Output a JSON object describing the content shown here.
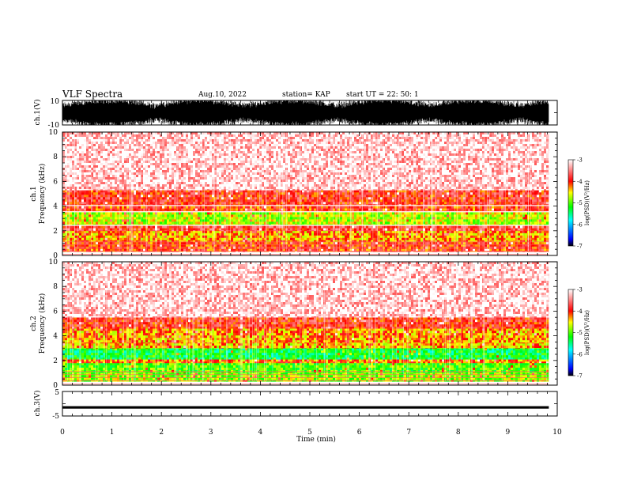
{
  "header": {
    "title": "VLF Spectra",
    "date": "Aug.10, 2022",
    "station": "station= KAP",
    "start": "start  UT  =   22: 50: 1"
  },
  "chart_data": [
    {
      "type": "line",
      "panel": "ch1-waveform",
      "ylabel": "ch.1(V)",
      "ylim": [
        -10,
        10
      ],
      "y_ticklabels": [
        "10",
        "-10"
      ],
      "xlim": [
        0,
        10
      ],
      "x_data_extent": [
        0,
        9.83
      ],
      "description_values": {
        "amplitude_range": [
          -10,
          10
        ]
      }
    },
    {
      "type": "heatmap",
      "panel": "ch1-spectrogram",
      "ylabel": "ch.1\nFrequency (kHz)",
      "ylim": [
        0,
        10
      ],
      "y_ticks": [
        0,
        2,
        4,
        6,
        8,
        10
      ],
      "xlim": [
        0,
        10
      ],
      "x_data_extent": [
        0,
        9.83
      ],
      "bands": [
        {
          "f_min": 0.3,
          "f_max": 1.1,
          "level": -4.0
        },
        {
          "f_min": 1.1,
          "f_max": 2.0,
          "level": -4.3
        },
        {
          "f_min": 2.0,
          "f_max": 2.4,
          "level": -3.8
        },
        {
          "f_min": 2.5,
          "f_max": 3.5,
          "level": -4.7
        },
        {
          "f_min": 3.6,
          "f_max": 4.0,
          "level": -4.0
        },
        {
          "f_min": 4.1,
          "f_max": 5.3,
          "level": -3.9
        },
        {
          "f_min": 5.3,
          "f_max": 10.0,
          "level": -3.2
        }
      ],
      "colorbar": {
        "label": "log(PSD)(V²/Hz)",
        "range": [
          -7,
          -3
        ],
        "ticks": [
          "-3",
          "-4",
          "-5",
          "-6",
          "-7"
        ],
        "colors": [
          "#ffffff",
          "#ff0000",
          "#ffff00",
          "#00ff00",
          "#00ffff",
          "#0000ff",
          "#000000"
        ]
      }
    },
    {
      "type": "heatmap",
      "panel": "ch2-spectrogram",
      "ylabel": "ch.2\nFrequency (kHz)",
      "ylim": [
        0,
        10
      ],
      "y_ticks": [
        0,
        2,
        4,
        6,
        8,
        10
      ],
      "xlim": [
        0,
        10
      ],
      "x_data_extent": [
        0,
        9.83
      ],
      "bands": [
        {
          "f_min": 0.3,
          "f_max": 1.0,
          "level": -4.8
        },
        {
          "f_min": 1.0,
          "f_max": 1.8,
          "level": -5.0
        },
        {
          "f_min": 1.8,
          "f_max": 2.1,
          "level": -4.2
        },
        {
          "f_min": 2.1,
          "f_max": 3.0,
          "level": -5.3
        },
        {
          "f_min": 3.0,
          "f_max": 3.4,
          "level": -4.4
        },
        {
          "f_min": 3.4,
          "f_max": 4.6,
          "level": -4.3
        },
        {
          "f_min": 4.6,
          "f_max": 5.5,
          "level": -3.9
        },
        {
          "f_min": 5.5,
          "f_max": 10.0,
          "level": -3.2
        }
      ],
      "colorbar": {
        "label": "log(PSD)(V²/Hz)",
        "range": [
          -7,
          -3
        ],
        "ticks": [
          "-3",
          "-4",
          "-5",
          "-6",
          "-7"
        ],
        "colors": [
          "#ffffff",
          "#ff0000",
          "#ffff00",
          "#00ff00",
          "#00ffff",
          "#0000ff",
          "#000000"
        ]
      }
    },
    {
      "type": "line",
      "panel": "ch3-waveform",
      "ylabel": "ch.3(V)",
      "ylim": [
        -5,
        5
      ],
      "y_ticklabels": [
        "5",
        "-5"
      ],
      "xlim": [
        0,
        10
      ],
      "x_data_extent": [
        0,
        9.83
      ],
      "description_values": {
        "level": -1.5,
        "band_halfwidth": 0.5
      }
    }
  ],
  "x_axis": {
    "label": "Time (min)",
    "range": [
      0,
      10
    ],
    "ticks": [
      "0",
      "1",
      "2",
      "3",
      "4",
      "5",
      "6",
      "7",
      "8",
      "9",
      "10"
    ]
  }
}
